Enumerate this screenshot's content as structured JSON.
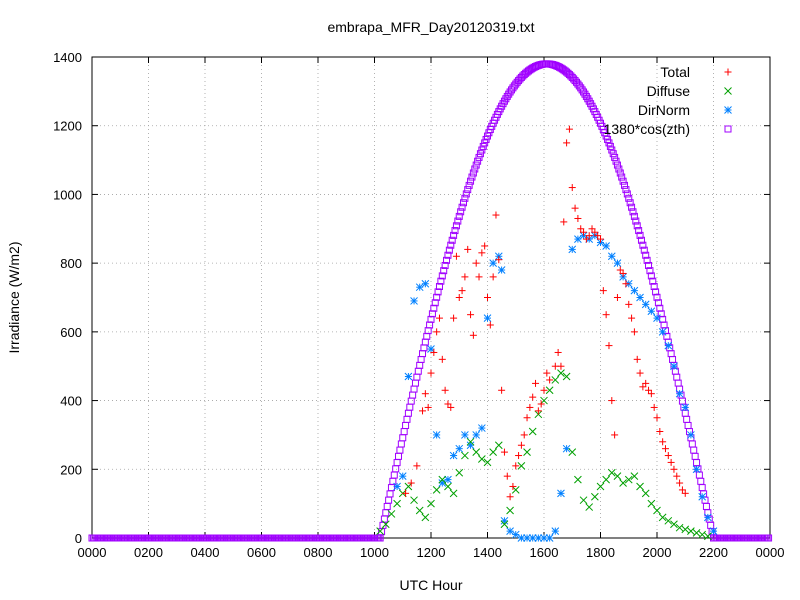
{
  "chart_data": {
    "type": "scatter",
    "title": "embrapa_MFR_Day20120319.txt",
    "xlabel": "UTC Hour",
    "ylabel": "Irradiance (W/m2)",
    "xlim": [
      0,
      24
    ],
    "ylim": [
      0,
      1400
    ],
    "x_tick_labels": [
      "0000",
      "0200",
      "0400",
      "0600",
      "0800",
      "1000",
      "1200",
      "1400",
      "1600",
      "1800",
      "2000",
      "2200",
      "0000"
    ],
    "y_ticks": [
      0,
      200,
      400,
      600,
      800,
      1000,
      1200,
      1400
    ],
    "grid": true,
    "legend_position": "top-right",
    "series": [
      {
        "name": "Total",
        "marker": "plus",
        "color": "#ff0000",
        "points": [
          [
            11.1,
            130
          ],
          [
            11.3,
            160
          ],
          [
            11.5,
            210
          ],
          [
            11.7,
            370
          ],
          [
            11.8,
            420
          ],
          [
            11.9,
            380
          ],
          [
            12.0,
            480
          ],
          [
            12.1,
            540
          ],
          [
            12.2,
            600
          ],
          [
            12.3,
            640
          ],
          [
            12.4,
            520
          ],
          [
            12.5,
            430
          ],
          [
            12.6,
            390
          ],
          [
            12.7,
            380
          ],
          [
            12.8,
            640
          ],
          [
            12.9,
            820
          ],
          [
            13.0,
            700
          ],
          [
            13.1,
            720
          ],
          [
            13.2,
            760
          ],
          [
            13.3,
            840
          ],
          [
            13.4,
            650
          ],
          [
            13.5,
            590
          ],
          [
            13.6,
            800
          ],
          [
            13.7,
            760
          ],
          [
            13.8,
            830
          ],
          [
            13.9,
            850
          ],
          [
            14.0,
            700
          ],
          [
            14.1,
            620
          ],
          [
            14.2,
            760
          ],
          [
            14.3,
            940
          ],
          [
            14.4,
            810
          ],
          [
            14.5,
            430
          ],
          [
            14.6,
            250
          ],
          [
            14.7,
            180
          ],
          [
            14.8,
            120
          ],
          [
            14.9,
            150
          ],
          [
            15.0,
            210
          ],
          [
            15.1,
            240
          ],
          [
            15.2,
            270
          ],
          [
            15.3,
            300
          ],
          [
            15.4,
            350
          ],
          [
            15.5,
            380
          ],
          [
            15.6,
            410
          ],
          [
            15.7,
            450
          ],
          [
            15.8,
            370
          ],
          [
            15.9,
            390
          ],
          [
            16.0,
            430
          ],
          [
            16.1,
            480
          ],
          [
            16.2,
            460
          ],
          [
            16.4,
            500
          ],
          [
            16.5,
            540
          ],
          [
            16.6,
            500
          ],
          [
            16.7,
            920
          ],
          [
            16.8,
            1150
          ],
          [
            16.9,
            1190
          ],
          [
            17.0,
            1020
          ],
          [
            17.1,
            960
          ],
          [
            17.2,
            930
          ],
          [
            17.3,
            900
          ],
          [
            17.4,
            890
          ],
          [
            17.5,
            870
          ],
          [
            17.6,
            880
          ],
          [
            17.7,
            900
          ],
          [
            17.8,
            890
          ],
          [
            17.9,
            880
          ],
          [
            18.0,
            870
          ],
          [
            18.1,
            720
          ],
          [
            18.2,
            650
          ],
          [
            18.3,
            560
          ],
          [
            18.4,
            400
          ],
          [
            18.5,
            300
          ],
          [
            18.6,
            700
          ],
          [
            18.7,
            780
          ],
          [
            18.8,
            770
          ],
          [
            18.9,
            740
          ],
          [
            19.0,
            680
          ],
          [
            19.1,
            640
          ],
          [
            19.2,
            600
          ],
          [
            19.3,
            520
          ],
          [
            19.4,
            480
          ],
          [
            19.5,
            440
          ],
          [
            19.6,
            450
          ],
          [
            19.7,
            430
          ],
          [
            19.8,
            420
          ],
          [
            19.9,
            380
          ],
          [
            20.0,
            350
          ],
          [
            20.1,
            310
          ],
          [
            20.2,
            280
          ],
          [
            20.3,
            260
          ],
          [
            20.4,
            240
          ],
          [
            20.5,
            220
          ],
          [
            20.6,
            200
          ],
          [
            20.7,
            180
          ],
          [
            20.8,
            160
          ],
          [
            20.9,
            140
          ],
          [
            21.0,
            130
          ]
        ]
      },
      {
        "name": "Diffuse",
        "marker": "cross",
        "color": "#00a000",
        "points": [
          [
            10.2,
            20
          ],
          [
            10.4,
            40
          ],
          [
            10.6,
            70
          ],
          [
            10.8,
            100
          ],
          [
            11.0,
            130
          ],
          [
            11.2,
            150
          ],
          [
            11.4,
            110
          ],
          [
            11.6,
            80
          ],
          [
            11.8,
            60
          ],
          [
            12.0,
            100
          ],
          [
            12.2,
            140
          ],
          [
            12.4,
            170
          ],
          [
            12.6,
            150
          ],
          [
            12.8,
            130
          ],
          [
            13.0,
            190
          ],
          [
            13.2,
            240
          ],
          [
            13.4,
            280
          ],
          [
            13.6,
            250
          ],
          [
            13.8,
            230
          ],
          [
            14.0,
            220
          ],
          [
            14.2,
            250
          ],
          [
            14.4,
            270
          ],
          [
            14.6,
            40
          ],
          [
            14.8,
            80
          ],
          [
            15.0,
            140
          ],
          [
            15.2,
            210
          ],
          [
            15.4,
            250
          ],
          [
            15.6,
            310
          ],
          [
            15.8,
            360
          ],
          [
            16.0,
            400
          ],
          [
            16.2,
            430
          ],
          [
            16.4,
            460
          ],
          [
            16.6,
            480
          ],
          [
            16.8,
            470
          ],
          [
            17.0,
            250
          ],
          [
            17.2,
            170
          ],
          [
            17.4,
            110
          ],
          [
            17.6,
            90
          ],
          [
            17.8,
            120
          ],
          [
            18.0,
            150
          ],
          [
            18.2,
            170
          ],
          [
            18.4,
            190
          ],
          [
            18.6,
            180
          ],
          [
            18.8,
            160
          ],
          [
            19.0,
            170
          ],
          [
            19.2,
            180
          ],
          [
            19.4,
            150
          ],
          [
            19.6,
            130
          ],
          [
            19.8,
            100
          ],
          [
            20.0,
            80
          ],
          [
            20.2,
            60
          ],
          [
            20.4,
            50
          ],
          [
            20.6,
            40
          ],
          [
            20.8,
            30
          ],
          [
            21.0,
            25
          ],
          [
            21.2,
            20
          ],
          [
            21.4,
            15
          ],
          [
            21.6,
            10
          ],
          [
            21.8,
            5
          ]
        ]
      },
      {
        "name": "DirNorm",
        "marker": "star",
        "color": "#0080ff",
        "points": [
          [
            10.8,
            150
          ],
          [
            11.0,
            180
          ],
          [
            11.2,
            470
          ],
          [
            11.4,
            690
          ],
          [
            11.6,
            730
          ],
          [
            11.8,
            740
          ],
          [
            12.0,
            550
          ],
          [
            12.2,
            300
          ],
          [
            12.4,
            160
          ],
          [
            12.6,
            170
          ],
          [
            12.8,
            240
          ],
          [
            13.0,
            260
          ],
          [
            13.2,
            300
          ],
          [
            13.4,
            270
          ],
          [
            13.6,
            300
          ],
          [
            13.8,
            320
          ],
          [
            14.0,
            640
          ],
          [
            14.2,
            800
          ],
          [
            14.4,
            820
          ],
          [
            14.5,
            780
          ],
          [
            14.6,
            50
          ],
          [
            14.8,
            20
          ],
          [
            15.0,
            10
          ],
          [
            15.2,
            0
          ],
          [
            15.4,
            0
          ],
          [
            15.6,
            0
          ],
          [
            15.8,
            0
          ],
          [
            16.0,
            0
          ],
          [
            16.2,
            0
          ],
          [
            16.4,
            20
          ],
          [
            16.6,
            130
          ],
          [
            16.8,
            260
          ],
          [
            17.0,
            840
          ],
          [
            17.2,
            870
          ],
          [
            17.4,
            880
          ],
          [
            17.6,
            870
          ],
          [
            17.8,
            880
          ],
          [
            18.0,
            860
          ],
          [
            18.2,
            850
          ],
          [
            18.4,
            820
          ],
          [
            18.6,
            800
          ],
          [
            18.8,
            760
          ],
          [
            19.0,
            740
          ],
          [
            19.2,
            720
          ],
          [
            19.4,
            700
          ],
          [
            19.6,
            680
          ],
          [
            19.8,
            660
          ],
          [
            20.0,
            640
          ],
          [
            20.2,
            600
          ],
          [
            20.4,
            560
          ],
          [
            20.6,
            500
          ],
          [
            20.8,
            420
          ],
          [
            21.0,
            380
          ],
          [
            21.2,
            300
          ],
          [
            21.4,
            200
          ],
          [
            21.6,
            120
          ],
          [
            21.8,
            60
          ],
          [
            22.0,
            20
          ]
        ]
      },
      {
        "name": "1380*cos(zth)",
        "marker": "square",
        "color": "#a000ff",
        "curve": {
          "sunrise": 10.2,
          "noon": 16.1,
          "sunset": 22.0,
          "peak": 1380
        }
      }
    ]
  }
}
